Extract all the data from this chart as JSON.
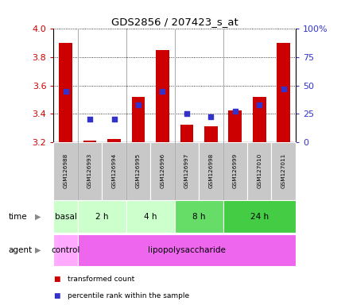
{
  "title": "GDS2856 / 207423_s_at",
  "samples": [
    "GSM126988",
    "GSM126993",
    "GSM126994",
    "GSM126995",
    "GSM126996",
    "GSM126997",
    "GSM126998",
    "GSM126999",
    "GSM127010",
    "GSM127011"
  ],
  "transformed_count": [
    3.9,
    3.21,
    3.22,
    3.52,
    3.85,
    3.32,
    3.31,
    3.42,
    3.52,
    3.9
  ],
  "percentile_rank_pct": [
    45,
    20,
    20,
    33,
    45,
    25,
    22,
    27,
    33,
    47
  ],
  "ylim": [
    3.2,
    4.0
  ],
  "yticks": [
    3.2,
    3.4,
    3.6,
    3.8,
    4.0
  ],
  "y2ticks_pct": [
    0,
    25,
    50,
    75,
    100
  ],
  "y2ticklabels": [
    "0",
    "25",
    "50",
    "75",
    "100%"
  ],
  "bar_color": "#cc0000",
  "dot_color": "#3333cc",
  "bar_bottom": 3.2,
  "time_groups": [
    {
      "label": "basal",
      "start": 0,
      "end": 1,
      "color": "#ccffcc"
    },
    {
      "label": "2 h",
      "start": 1,
      "end": 3,
      "color": "#ccffcc"
    },
    {
      "label": "4 h",
      "start": 3,
      "end": 5,
      "color": "#ccffcc"
    },
    {
      "label": "8 h",
      "start": 5,
      "end": 7,
      "color": "#66dd66"
    },
    {
      "label": "24 h",
      "start": 7,
      "end": 10,
      "color": "#44cc44"
    }
  ],
  "agent_groups": [
    {
      "label": "control",
      "start": 0,
      "end": 1,
      "color": "#ffaaff"
    },
    {
      "label": "lipopolysaccharide",
      "start": 1,
      "end": 10,
      "color": "#ee66ee"
    }
  ],
  "legend_items": [
    {
      "label": "transformed count",
      "color": "#cc0000"
    },
    {
      "label": "percentile rank within the sample",
      "color": "#3333cc"
    }
  ],
  "bar_width": 0.55,
  "dot_size": 16,
  "bg_color": "#ffffff",
  "sample_bg": "#c8c8c8",
  "spine_color": "#000000",
  "grid_linestyle": "dotted",
  "group_sep_color": "#aaaaaa",
  "fig_width": 4.35,
  "fig_height": 3.84
}
